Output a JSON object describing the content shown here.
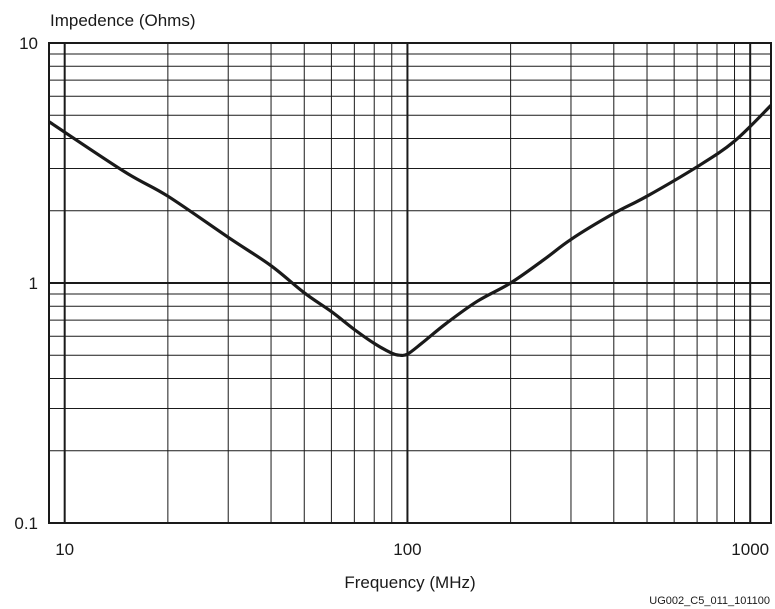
{
  "chart_data": {
    "type": "line",
    "ylabel": "Impedence (Ohms)",
    "xlabel": "Frequency (MHz)",
    "x_scale": "log",
    "y_scale": "log",
    "xlim": [
      9,
      1150
    ],
    "ylim": [
      0.1,
      10
    ],
    "grid": true,
    "x_ticks": [
      {
        "value": 10,
        "label": "10"
      },
      {
        "value": 100,
        "label": "100"
      },
      {
        "value": 1000,
        "label": "1000"
      }
    ],
    "y_ticks": [
      {
        "value": 0.1,
        "label": "0.1"
      },
      {
        "value": 1,
        "label": "1"
      },
      {
        "value": 10,
        "label": "10"
      }
    ],
    "series": [
      {
        "x": [
          9,
          15,
          20,
          30,
          40,
          50,
          60,
          70,
          80,
          90,
          95,
          100,
          110,
          130,
          160,
          200,
          250,
          300,
          400,
          500,
          700,
          900,
          1150
        ],
        "y": [
          4.7,
          2.9,
          2.3,
          1.55,
          1.18,
          0.91,
          0.76,
          0.64,
          0.56,
          0.51,
          0.5,
          0.505,
          0.56,
          0.68,
          0.84,
          1.0,
          1.25,
          1.52,
          1.95,
          2.3,
          3.05,
          3.9,
          5.5
        ]
      }
    ]
  },
  "figure_id": "UG002_C5_011_101100"
}
